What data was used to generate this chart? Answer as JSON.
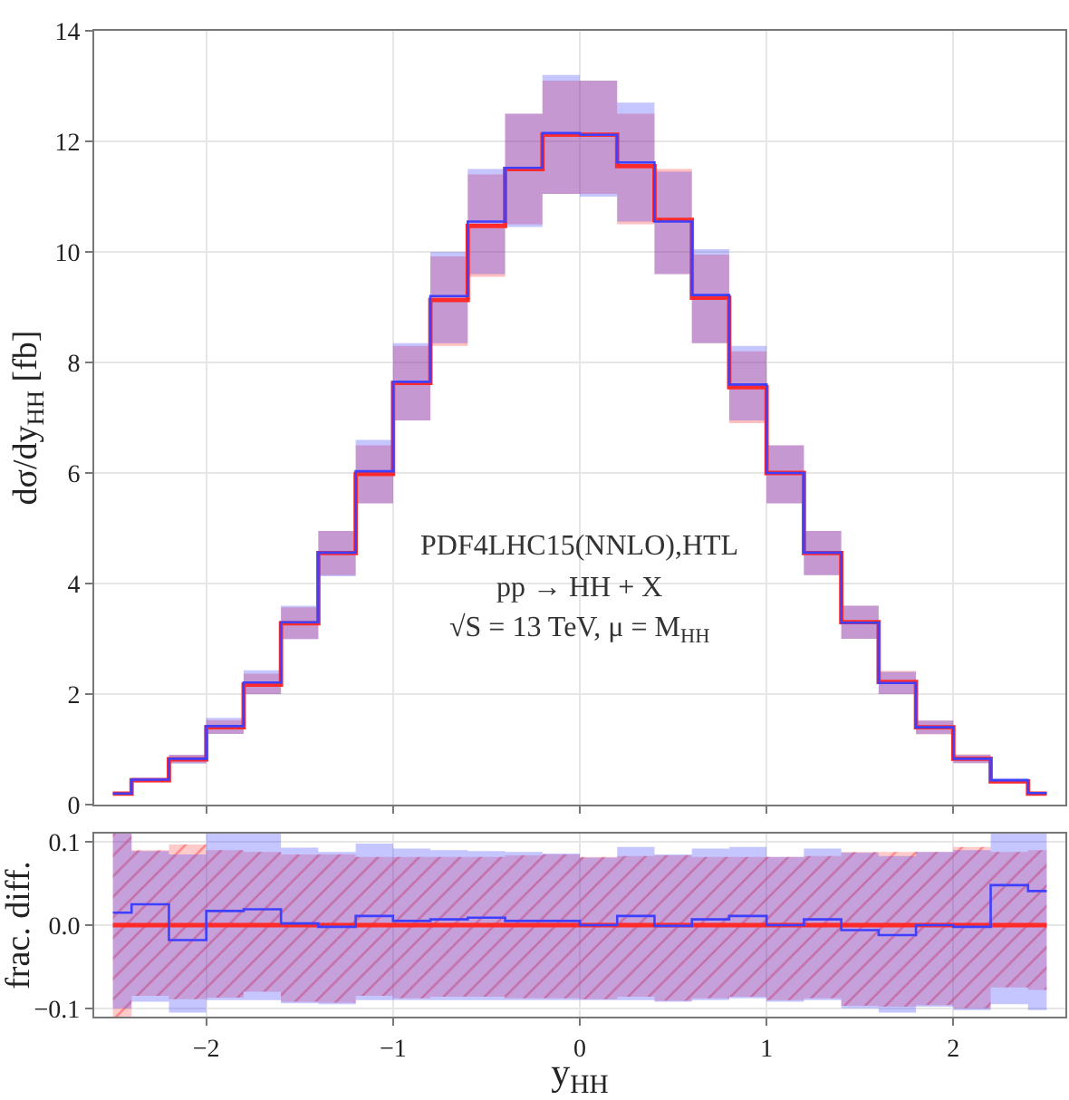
{
  "chart_data": [
    {
      "type": "step",
      "ylabel": "dσ/dy$_{HH}$ [fb]",
      "x": [
        -2.5,
        -2.3,
        -2.1,
        -1.9,
        -1.7,
        -1.5,
        -1.3,
        -1.1,
        -0.9,
        -0.7,
        -0.5,
        -0.3,
        -0.1,
        0.1,
        0.3,
        0.5,
        0.7,
        0.9,
        1.1,
        1.3,
        1.5,
        1.7,
        1.9,
        2.1,
        2.3,
        2.5
      ],
      "xlim": [
        -2.6,
        2.6
      ],
      "xticks": [
        {
          "value": -2,
          "label": null
        },
        {
          "value": -1,
          "label": null
        },
        {
          "value": 0,
          "label": null
        },
        {
          "value": 1,
          "label": null
        },
        {
          "value": 2,
          "label": null
        }
      ],
      "ylim": [
        0,
        14
      ],
      "yticks": [
        0,
        2,
        4,
        6,
        8,
        10,
        12,
        14
      ],
      "tick_labels": "y",
      "grid": true,
      "annotations": [
        "PDF4LHC15(NNLO),HTL",
        "pp → HH + X",
        "√S = 13 TeV, μ = M$_{HH}$"
      ],
      "series": [
        {
          "color": "#ff2a2a",
          "values": [
            0.2,
            0.44,
            0.82,
            1.4,
            2.17,
            3.28,
            4.55,
            5.98,
            7.63,
            9.13,
            10.47,
            11.5,
            12.12,
            12.12,
            11.55,
            10.58,
            9.17,
            7.55,
            6.0,
            4.55,
            3.3,
            2.22,
            1.4,
            0.83,
            0.42,
            0.2
          ],
          "lower": [
            0.18,
            0.4,
            0.75,
            1.28,
            2.0,
            3.0,
            4.15,
            5.45,
            6.95,
            8.3,
            9.55,
            10.5,
            11.05,
            11.05,
            10.5,
            9.6,
            8.35,
            6.9,
            5.45,
            4.15,
            3.0,
            2.0,
            1.27,
            0.75,
            0.39,
            0.18
          ],
          "upper": [
            0.22,
            0.48,
            0.9,
            1.53,
            2.37,
            3.57,
            4.95,
            6.5,
            8.3,
            9.92,
            11.4,
            12.5,
            13.1,
            13.1,
            12.5,
            11.5,
            9.95,
            8.2,
            6.5,
            4.95,
            3.6,
            2.42,
            1.52,
            0.91,
            0.46,
            0.22
          ]
        },
        {
          "color": "#3f3fff",
          "values": [
            0.2,
            0.45,
            0.83,
            1.42,
            2.21,
            3.3,
            4.56,
            6.03,
            7.65,
            9.2,
            10.55,
            11.52,
            12.15,
            12.12,
            11.62,
            10.55,
            9.22,
            7.6,
            6.0,
            4.56,
            3.29,
            2.2,
            1.4,
            0.83,
            0.44,
            0.21
          ],
          "lower": [
            0.18,
            0.41,
            0.74,
            1.28,
            2.0,
            2.99,
            4.13,
            5.45,
            6.95,
            8.35,
            9.6,
            10.45,
            11.05,
            11.0,
            10.55,
            9.6,
            8.35,
            6.95,
            5.45,
            4.15,
            3.0,
            2.0,
            1.28,
            0.75,
            0.4,
            0.19
          ],
          "upper": [
            0.22,
            0.49,
            0.9,
            1.57,
            2.43,
            3.6,
            4.95,
            6.6,
            8.35,
            10.0,
            11.5,
            12.5,
            13.2,
            13.1,
            12.7,
            11.45,
            10.05,
            8.3,
            6.5,
            4.95,
            3.6,
            2.4,
            1.52,
            0.9,
            0.48,
            0.23
          ]
        }
      ]
    },
    {
      "type": "step",
      "ylabel": "frac. diff.",
      "xlabel": "y$_{HH}$",
      "x": [
        -2.5,
        -2.3,
        -2.1,
        -1.9,
        -1.7,
        -1.5,
        -1.3,
        -1.1,
        -0.9,
        -0.7,
        -0.5,
        -0.3,
        -0.1,
        0.1,
        0.3,
        0.5,
        0.7,
        0.9,
        1.1,
        1.3,
        1.5,
        1.7,
        1.9,
        2.1,
        2.3,
        2.5
      ],
      "xlim": [
        -2.6,
        2.6
      ],
      "xticks": [
        {
          "value": -2,
          "label": "−2"
        },
        {
          "value": -1,
          "label": "−1"
        },
        0,
        1,
        2
      ],
      "ylim": [
        -0.11,
        0.11
      ],
      "yticks": [
        {
          "value": -0.1,
          "label": "−0.1"
        },
        {
          "value": 0,
          "label": "0.0"
        },
        {
          "value": 0.1,
          "label": "0.1"
        }
      ],
      "grid": true,
      "series": [
        {
          "color": "#ff2a2a",
          "values": [
            0,
            0,
            0,
            0,
            0,
            0,
            0,
            0,
            0,
            0,
            0,
            0,
            0,
            0,
            0,
            0,
            0,
            0,
            0,
            0,
            0,
            0,
            0,
            0,
            0,
            0
          ],
          "lower": [
            -0.11,
            -0.085,
            -0.089,
            -0.087,
            -0.08,
            -0.092,
            -0.093,
            -0.085,
            -0.088,
            -0.086,
            -0.086,
            -0.088,
            -0.088,
            -0.089,
            -0.086,
            -0.091,
            -0.088,
            -0.086,
            -0.09,
            -0.088,
            -0.097,
            -0.098,
            -0.096,
            -0.1,
            -0.075,
            -0.078
          ],
          "upper": [
            0.11,
            0.09,
            0.097,
            0.09,
            0.088,
            0.085,
            0.085,
            0.082,
            0.082,
            0.082,
            0.082,
            0.084,
            0.085,
            0.082,
            0.083,
            0.084,
            0.082,
            0.082,
            0.082,
            0.083,
            0.088,
            0.088,
            0.088,
            0.094,
            0.088,
            0.09
          ]
        },
        {
          "color": "#3f3fff",
          "values": [
            0.015,
            0.025,
            -0.018,
            0.017,
            0.019,
            0.002,
            -0.002,
            0.011,
            0.005,
            0.007,
            0.009,
            0.005,
            0.005,
            0.0,
            0.011,
            -0.001,
            0.007,
            0.011,
            0.0,
            0.007,
            -0.006,
            -0.012,
            0.0,
            -0.002,
            0.048,
            0.041
          ],
          "lower": [
            -0.1,
            -0.092,
            -0.105,
            -0.09,
            -0.09,
            -0.094,
            -0.095,
            -0.09,
            -0.09,
            -0.09,
            -0.09,
            -0.09,
            -0.09,
            -0.09,
            -0.09,
            -0.092,
            -0.09,
            -0.088,
            -0.092,
            -0.09,
            -0.1,
            -0.105,
            -0.098,
            -0.102,
            -0.095,
            -0.102
          ],
          "upper": [
            0.11,
            0.089,
            0.085,
            0.11,
            0.11,
            0.093,
            0.088,
            0.098,
            0.092,
            0.09,
            0.089,
            0.088,
            0.086,
            0.081,
            0.094,
            0.085,
            0.092,
            0.094,
            0.082,
            0.092,
            0.087,
            0.083,
            0.088,
            0.09,
            0.11,
            0.11
          ]
        }
      ]
    }
  ]
}
